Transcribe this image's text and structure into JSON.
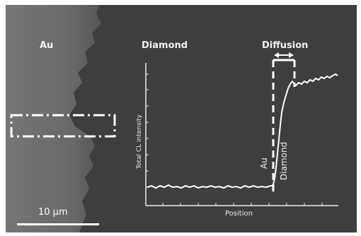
{
  "labels": {
    "region_au": "Au",
    "region_diamond": "Diamond",
    "region_diffusion": "Diffusion",
    "inset_au": "Au",
    "inset_diamond": "Diamond"
  },
  "axes": {
    "ylabel": "Total CL intensity",
    "xlabel": "Position"
  },
  "scale_bar": {
    "label": "10 µm"
  },
  "colors": {
    "background": "#3e3e3e",
    "au_region": "#6a6a6a",
    "overlay": "#ffffff"
  }
}
